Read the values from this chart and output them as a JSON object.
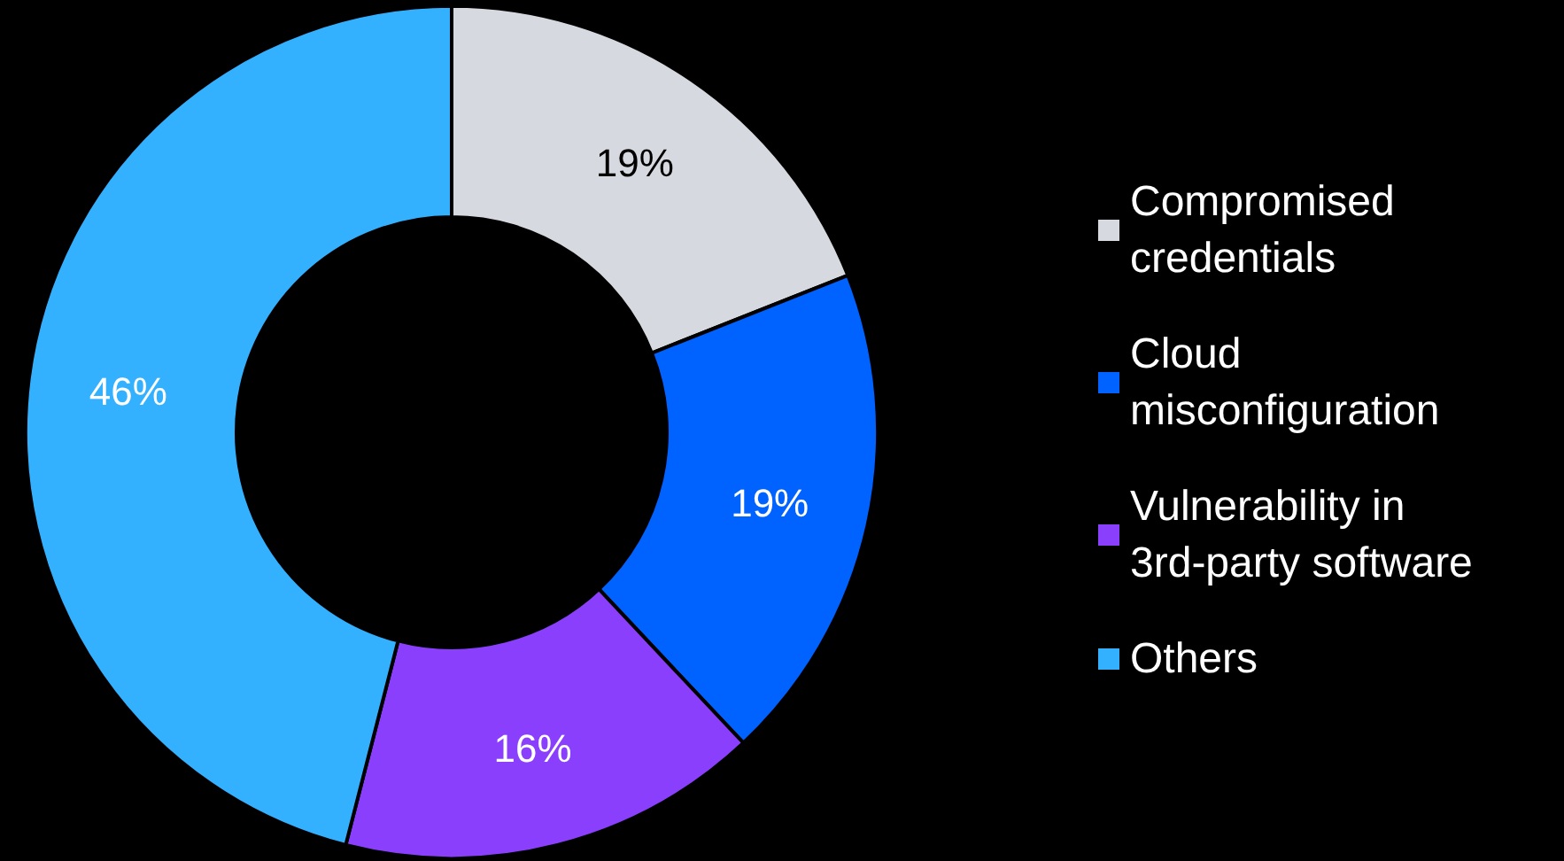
{
  "chart_data": {
    "type": "donut",
    "categories": [
      "Compromised credentials",
      "Cloud misconfiguration",
      "Vulnerability in 3rd-party software",
      "Others"
    ],
    "values": [
      19,
      19,
      16,
      46
    ],
    "colors": [
      "#d6dae0",
      "#0062ff",
      "#8a3ffc",
      "#33b1ff"
    ],
    "value_labels": [
      "19%",
      "19%",
      "16%",
      "46%"
    ],
    "legend": "right"
  }
}
